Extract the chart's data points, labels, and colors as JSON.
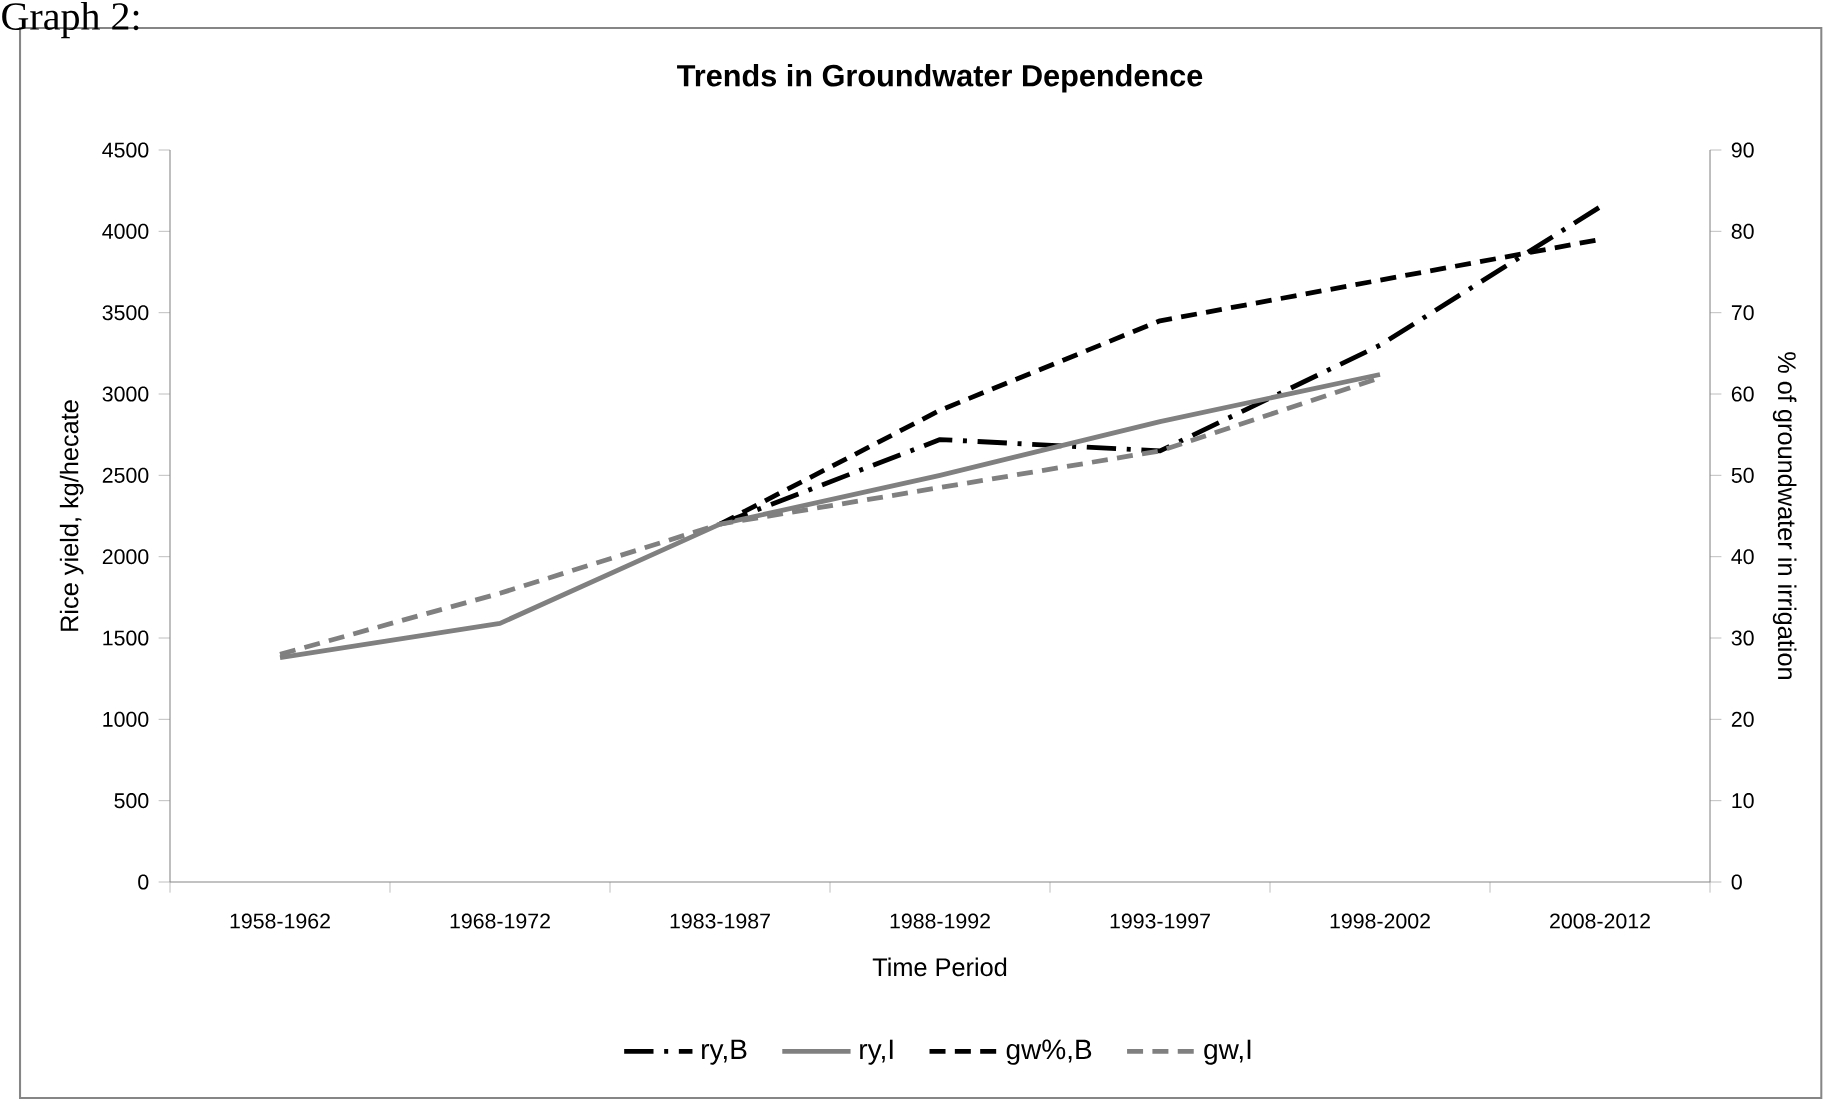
{
  "chart_data": {
    "type": "line",
    "title": "Trends in Groundwater Dependence",
    "annotations": [
      "Graph 2:"
    ],
    "xlabel": "Time Period",
    "ylabel": "Rice yield, kg/hecate",
    "y2label": "% of groundwater in irrigation",
    "categories": [
      "1958-1962",
      "1968-1972",
      "1983-1987",
      "1988-1992",
      "1993-1997",
      "1998-2002",
      "2008-2012"
    ],
    "series": [
      {
        "name": "ry,B",
        "color": "#000000",
        "line_style": "dashdot",
        "values": [
          null,
          null,
          2200,
          2720,
          2650,
          3300,
          4150
        ]
      },
      {
        "name": "ry,I",
        "color": "#808080",
        "line_style": "solid",
        "values": [
          1380,
          1590,
          2200,
          2500,
          2830,
          3120,
          null
        ]
      },
      {
        "name": "gw%,B",
        "color": "#000000",
        "line_style": "dashed",
        "axis": "y2",
        "values": [
          null,
          null,
          44,
          58,
          69,
          74,
          79
        ]
      },
      {
        "name": "gw,I",
        "color": "#808080",
        "line_style": "dashed",
        "axis": "y2",
        "values": [
          28,
          35.5,
          44,
          48.5,
          53,
          62,
          null
        ]
      }
    ],
    "ylim": [
      0,
      4500
    ],
    "yticks": [
      0,
      500,
      1000,
      1500,
      2000,
      2500,
      3000,
      3500,
      4000,
      4500
    ],
    "y2lim": [
      0,
      90
    ],
    "y2ticks": [
      0,
      10,
      20,
      30,
      40,
      50,
      60,
      70,
      80,
      90
    ],
    "grid": false,
    "legend": "bottom",
    "marker": "none"
  }
}
